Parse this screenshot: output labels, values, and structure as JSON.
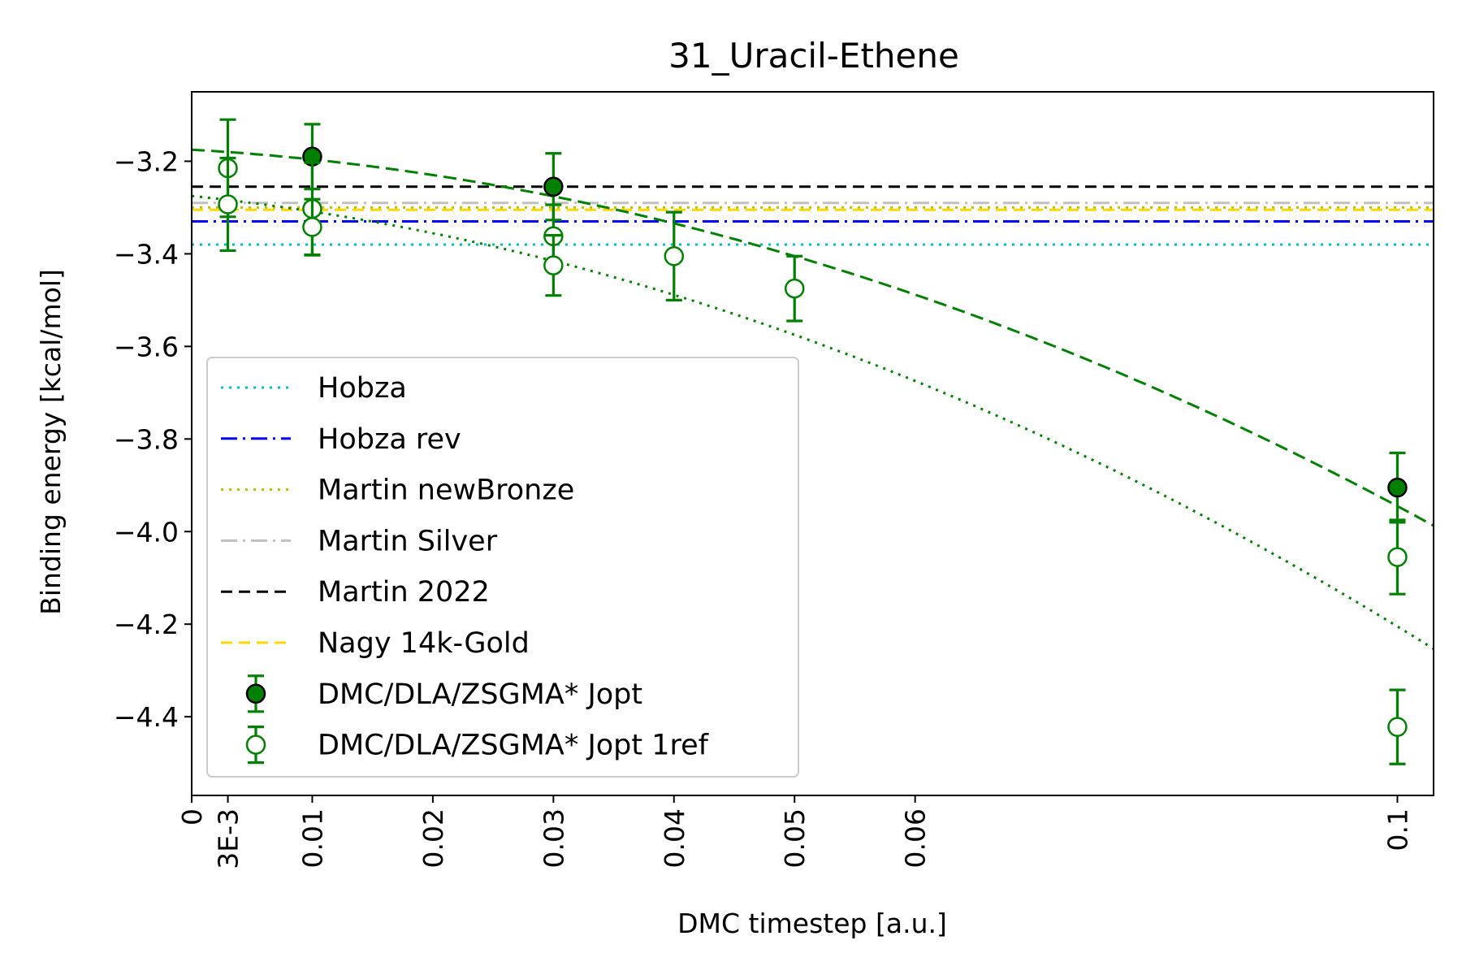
{
  "chart_data": {
    "type": "scatter",
    "title": "31_Uracil-Ethene",
    "xlabel": "DMC timestep [a.u.]",
    "ylabel": "Binding energy [kcal/mol]",
    "xlim": [
      0,
      0.103
    ],
    "ylim": [
      -4.57,
      -3.05
    ],
    "grid": false,
    "legend_position": "lower-left",
    "x_ticks": [
      {
        "value": 0,
        "label": "0"
      },
      {
        "value": 0.003,
        "label": "3E-3"
      },
      {
        "value": 0.01,
        "label": "0.01"
      },
      {
        "value": 0.02,
        "label": "0.02"
      },
      {
        "value": 0.03,
        "label": "0.03"
      },
      {
        "value": 0.04,
        "label": "0.04"
      },
      {
        "value": 0.05,
        "label": "0.05"
      },
      {
        "value": 0.06,
        "label": "0.06"
      },
      {
        "value": 0.1,
        "label": "0.1"
      }
    ],
    "y_ticks": [
      {
        "value": -4.4,
        "label": "−4.4"
      },
      {
        "value": -4.2,
        "label": "−4.2"
      },
      {
        "value": -4.0,
        "label": "−4.0"
      },
      {
        "value": -3.8,
        "label": "−3.8"
      },
      {
        "value": -3.6,
        "label": "−3.6"
      },
      {
        "value": -3.4,
        "label": "−3.4"
      },
      {
        "value": -3.2,
        "label": "−3.2"
      }
    ],
    "reference_lines": [
      {
        "name": "Hobza",
        "y": -3.38,
        "color": "#00bfbf",
        "dash": "3,7",
        "width": 3
      },
      {
        "name": "Hobza rev",
        "y": -3.33,
        "color": "#0000ff",
        "dash": "20,7,3,7",
        "width": 3
      },
      {
        "name": "Martin newBronze",
        "y": -3.3,
        "color": "#bfbf00",
        "dash": "3,7",
        "width": 3
      },
      {
        "name": "Martin Silver",
        "y": -3.29,
        "color": "#c0c0c0",
        "dash": "20,7,3,7",
        "width": 3
      },
      {
        "name": "Martin 2022",
        "y": -3.255,
        "color": "#000000",
        "dash": "14,8",
        "width": 3
      },
      {
        "name": "Nagy 14k-Gold",
        "y": -3.305,
        "color": "#ffd700",
        "dash": "14,8",
        "width": 3
      }
    ],
    "series": [
      {
        "name": "DMC/DLA/ZSGMA* Jopt",
        "color": "#008000",
        "filled": true,
        "points": [
          {
            "x": 0.01,
            "y": -3.19,
            "err": 0.07
          },
          {
            "x": 0.03,
            "y": -3.255,
            "err": 0.072
          },
          {
            "x": 0.1,
            "y": -3.905,
            "err": 0.075
          }
        ],
        "fit": {
          "coeffs": [
            -3.175,
            -1.5,
            -62.0
          ],
          "dash": "16,8"
        }
      },
      {
        "name": "DMC/DLA/ZSGMA* Jopt 1ref",
        "color": "#008000",
        "filled": false,
        "points": [
          {
            "x": 0.003,
            "y": -3.215,
            "err": 0.105
          },
          {
            "x": 0.003,
            "y": -3.293,
            "err": 0.1
          },
          {
            "x": 0.01,
            "y": -3.303,
            "err": 0.1
          },
          {
            "x": 0.01,
            "y": -3.342,
            "err": 0.06
          },
          {
            "x": 0.03,
            "y": -3.362,
            "err": 0.068
          },
          {
            "x": 0.03,
            "y": -3.425,
            "err": 0.065
          },
          {
            "x": 0.04,
            "y": -3.405,
            "err": 0.095
          },
          {
            "x": 0.05,
            "y": -3.475,
            "err": 0.07
          },
          {
            "x": 0.1,
            "y": -4.055,
            "err": 0.08
          },
          {
            "x": 0.1,
            "y": -4.422,
            "err": 0.08
          }
        ],
        "fit": {
          "coeffs": [
            -3.275,
            -2.7,
            -66.0
          ],
          "dash": "3,7"
        }
      }
    ]
  }
}
